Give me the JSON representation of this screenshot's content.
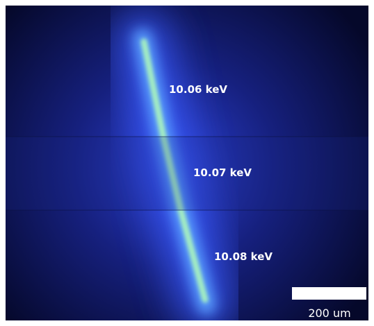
{
  "panels": [
    {
      "label": "10.06 keV"
    },
    {
      "label": "10.07 keV"
    },
    {
      "label": "10.08 keV"
    }
  ],
  "scale_bar": {
    "label": "200 um"
  }
}
